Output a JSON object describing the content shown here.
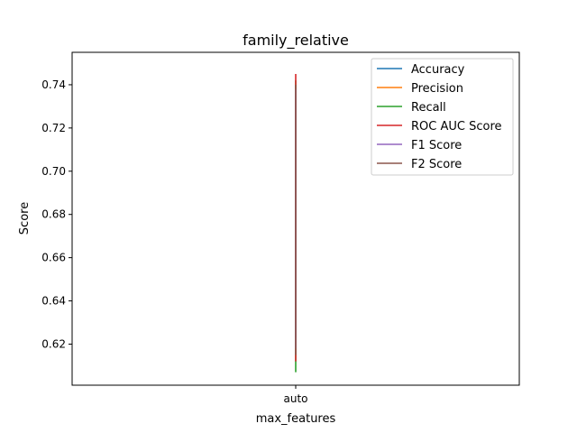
{
  "chart_data": {
    "type": "line",
    "title": "family_relative",
    "xlabel": "max_features",
    "ylabel": "Score",
    "categories": [
      "auto"
    ],
    "ylim": [
      0.601,
      0.755
    ],
    "yticks": [
      "0.62",
      "0.64",
      "0.66",
      "0.68",
      "0.70",
      "0.72",
      "0.74"
    ],
    "grid": false,
    "legend_position": "top-right",
    "series": [
      {
        "name": "Accuracy",
        "color": "#1f77b4",
        "values": [
          [
            0.623,
            0.735
          ]
        ]
      },
      {
        "name": "Precision",
        "color": "#ff7f0e",
        "values": [
          [
            0.63,
            0.74
          ]
        ]
      },
      {
        "name": "Recall",
        "color": "#2ca02c",
        "values": [
          [
            0.607,
            0.742
          ]
        ]
      },
      {
        "name": "ROC AUC Score",
        "color": "#d62728",
        "values": [
          [
            0.612,
            0.745
          ]
        ]
      },
      {
        "name": "F1 Score",
        "color": "#9467bd",
        "values": [
          [
            0.618,
            0.738
          ]
        ]
      },
      {
        "name": "F2 Score",
        "color": "#8c564b",
        "values": [
          [
            0.615,
            0.74
          ]
        ]
      }
    ]
  }
}
